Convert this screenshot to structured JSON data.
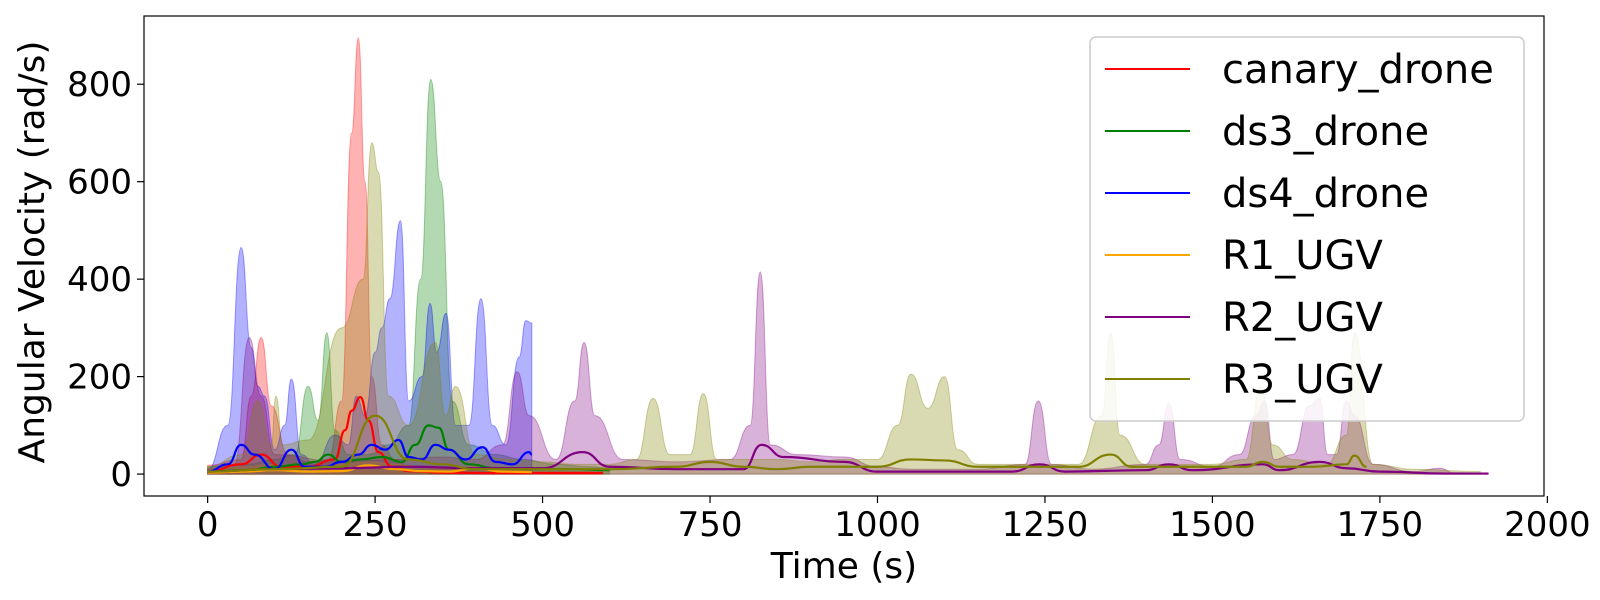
{
  "chart_data": {
    "type": "area",
    "title": "",
    "xlabel": "Time (s)",
    "ylabel": "Angular Velocity (rad/s)",
    "xlim": [
      -95,
      1995
    ],
    "ylim": [
      -45,
      940
    ],
    "xticks": [
      0,
      250,
      500,
      750,
      1000,
      1250,
      1500,
      1750,
      2000
    ],
    "yticks": [
      0,
      200,
      400,
      600,
      800
    ],
    "grid": false,
    "legend_position": "top-right",
    "series": [
      {
        "name": "canary_drone",
        "color": "#ff0000",
        "band_x": [
          0,
          50,
          65,
          80,
          95,
          120,
          150,
          180,
          200,
          215,
          225,
          235,
          245,
          260,
          280,
          300,
          350,
          420,
          500,
          590
        ],
        "band_y": [
          18,
          30,
          160,
          280,
          140,
          40,
          25,
          30,
          150,
          700,
          895,
          600,
          200,
          60,
          30,
          15,
          10,
          8,
          6,
          5
        ],
        "line_x": [
          0,
          50,
          80,
          110,
          150,
          190,
          205,
          215,
          228,
          240,
          255,
          275,
          300,
          350,
          420,
          500,
          590
        ],
        "line_y": [
          5,
          20,
          40,
          15,
          15,
          30,
          90,
          130,
          158,
          110,
          45,
          15,
          6,
          3,
          2,
          2,
          2
        ]
      },
      {
        "name": "ds3_drone",
        "color": "#008000",
        "band_x": [
          0,
          60,
          100,
          130,
          150,
          165,
          178,
          190,
          210,
          240,
          270,
          300,
          318,
          333,
          348,
          365,
          390,
          430,
          470,
          520,
          570,
          600
        ],
        "band_y": [
          15,
          20,
          30,
          40,
          180,
          110,
          290,
          90,
          40,
          40,
          60,
          100,
          400,
          810,
          600,
          150,
          60,
          40,
          30,
          20,
          15,
          12
        ],
        "line_x": [
          0,
          60,
          100,
          140,
          160,
          180,
          200,
          230,
          260,
          290,
          310,
          330,
          345,
          360,
          390,
          430,
          480,
          540,
          600
        ],
        "line_y": [
          5,
          8,
          15,
          20,
          25,
          40,
          25,
          30,
          35,
          25,
          60,
          100,
          95,
          50,
          20,
          12,
          10,
          10,
          8
        ]
      },
      {
        "name": "ds4_drone",
        "color": "#0000ff",
        "band_x": [
          0,
          30,
          50,
          65,
          75,
          85,
          100,
          115,
          125,
          140,
          160,
          190,
          210,
          222,
          235,
          250,
          260,
          272,
          288,
          300,
          320,
          332,
          342,
          356,
          370,
          390,
          408,
          425,
          445,
          465,
          475,
          484
        ],
        "band_y": [
          10,
          100,
          465,
          260,
          180,
          160,
          50,
          100,
          195,
          40,
          20,
          80,
          60,
          160,
          120,
          250,
          300,
          360,
          520,
          150,
          200,
          350,
          250,
          330,
          100,
          100,
          360,
          100,
          60,
          240,
          315,
          310
        ],
        "line_x": [
          0,
          30,
          50,
          70,
          100,
          125,
          145,
          175,
          200,
          225,
          245,
          265,
          285,
          300,
          320,
          340,
          360,
          385,
          410,
          430,
          455,
          480,
          484
        ],
        "line_y": [
          5,
          20,
          60,
          40,
          10,
          50,
          15,
          15,
          25,
          40,
          60,
          50,
          70,
          35,
          30,
          60,
          50,
          30,
          55,
          25,
          20,
          45,
          40
        ]
      },
      {
        "name": "R1_UGV",
        "color": "#ffa500",
        "band_x": [
          0,
          60,
          90,
          120,
          160,
          200,
          240,
          280,
          320,
          360,
          400,
          440,
          480
        ],
        "band_y": [
          10,
          15,
          20,
          15,
          15,
          20,
          25,
          20,
          15,
          12,
          15,
          12,
          10
        ],
        "line_x": [
          0,
          50,
          100,
          150,
          200,
          240,
          280,
          320,
          360,
          400,
          440,
          484
        ],
        "line_y": [
          3,
          5,
          8,
          5,
          6,
          18,
          10,
          6,
          5,
          12,
          5,
          4
        ]
      },
      {
        "name": "R2_UGV",
        "color": "#800080",
        "band_x": [
          0,
          40,
          62,
          80,
          100,
          200,
          280,
          350,
          400,
          440,
          462,
          480,
          520,
          548,
          562,
          578,
          620,
          700,
          780,
          810,
          825,
          840,
          880,
          950,
          1000,
          1050,
          1150,
          1220,
          1240,
          1260,
          1320,
          1400,
          1420,
          1435,
          1452,
          1500,
          1540,
          1565,
          1578,
          1592,
          1620,
          1645,
          1660,
          1672,
          1685,
          1700,
          1712,
          1740,
          1800,
          1840,
          1860,
          1912
        ],
        "band_y": [
          10,
          20,
          280,
          160,
          40,
          25,
          30,
          35,
          30,
          60,
          210,
          120,
          30,
          150,
          270,
          120,
          30,
          25,
          30,
          100,
          415,
          60,
          40,
          35,
          15,
          10,
          10,
          20,
          150,
          20,
          10,
          20,
          60,
          145,
          30,
          15,
          40,
          120,
          150,
          30,
          40,
          140,
          155,
          40,
          40,
          150,
          120,
          20,
          5,
          12,
          3,
          2
        ],
        "line_x": [
          0,
          100,
          200,
          300,
          400,
          500,
          560,
          600,
          700,
          800,
          827,
          860,
          950,
          1000,
          1100,
          1200,
          1242,
          1280,
          1400,
          1435,
          1470,
          1575,
          1600,
          1660,
          1700,
          1750,
          1850,
          1912
        ],
        "line_y": [
          5,
          10,
          12,
          15,
          12,
          12,
          45,
          15,
          10,
          10,
          60,
          35,
          25,
          5,
          5,
          5,
          20,
          5,
          8,
          20,
          8,
          20,
          8,
          25,
          12,
          5,
          1,
          1
        ]
      },
      {
        "name": "R3_UGV",
        "color": "#808000",
        "band_x": [
          0,
          50,
          75,
          95,
          102,
          112,
          150,
          200,
          232,
          245,
          255,
          270,
          300,
          340,
          355,
          370,
          400,
          450,
          500,
          550,
          600,
          640,
          665,
          690,
          720,
          740,
          760,
          800,
          850,
          900,
          950,
          1000,
          1030,
          1050,
          1075,
          1100,
          1120,
          1150,
          1200,
          1300,
          1335,
          1348,
          1362,
          1400,
          1450,
          1500,
          1550,
          1572,
          1590,
          1620,
          1670,
          1700,
          1712,
          1740,
          1800,
          1900
        ],
        "band_y": [
          15,
          40,
          150,
          60,
          160,
          60,
          70,
          300,
          400,
          680,
          620,
          160,
          100,
          270,
          120,
          180,
          40,
          30,
          25,
          20,
          20,
          30,
          155,
          40,
          40,
          165,
          30,
          30,
          30,
          25,
          30,
          30,
          100,
          205,
          135,
          200,
          50,
          20,
          20,
          20,
          120,
          290,
          80,
          20,
          20,
          20,
          30,
          180,
          60,
          30,
          20,
          80,
          290,
          20,
          10,
          5
        ],
        "line_x": [
          0,
          100,
          200,
          250,
          300,
          350,
          400,
          500,
          600,
          700,
          750,
          800,
          850,
          900,
          950,
          1000,
          1050,
          1100,
          1150,
          1200,
          1300,
          1348,
          1380,
          1450,
          1500,
          1550,
          1575,
          1600,
          1650,
          1700,
          1712,
          1730
        ],
        "line_y": [
          5,
          10,
          15,
          120,
          30,
          20,
          10,
          10,
          10,
          15,
          25,
          15,
          10,
          15,
          15,
          15,
          30,
          28,
          15,
          15,
          15,
          40,
          15,
          15,
          15,
          15,
          25,
          15,
          15,
          20,
          38,
          15
        ]
      }
    ]
  }
}
